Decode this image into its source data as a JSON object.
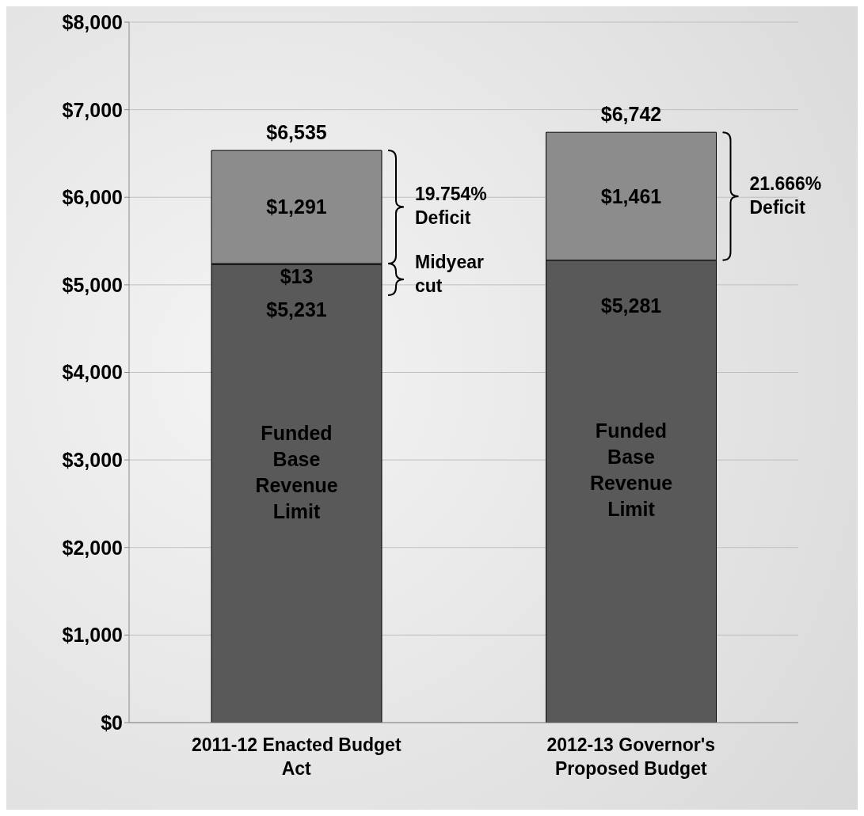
{
  "chart_data": {
    "type": "bar",
    "stacked": true,
    "categories": [
      "2011-12 Enacted Budget Act",
      "2012-13 Governor's Proposed Budget"
    ],
    "series": [
      {
        "color": "#595959",
        "values": [
          5231,
          5281
        ],
        "value_labels": [
          "$5,231",
          "$5,281"
        ]
      },
      {
        "color": "#c0c0c0",
        "values": [
          13,
          null
        ],
        "value_labels": [
          "$13",
          null
        ]
      },
      {
        "color": "#8c8c8c",
        "values": [
          1291,
          1461
        ],
        "value_labels": [
          "$1,291",
          "$1,461"
        ]
      }
    ],
    "totals": [
      "$6,535",
      "$6,742"
    ],
    "ylim": [
      0,
      8000
    ],
    "yticks": [
      {
        "value": 0,
        "label": "$0"
      },
      {
        "value": 1000,
        "label": "$1,000"
      },
      {
        "value": 2000,
        "label": "$2,000"
      },
      {
        "value": 3000,
        "label": "$3,000"
      },
      {
        "value": 4000,
        "label": "$4,000"
      },
      {
        "value": 5000,
        "label": "$5,000"
      },
      {
        "value": 6000,
        "label": "$6,000"
      },
      {
        "value": 7000,
        "label": "$7,000"
      },
      {
        "value": 8000,
        "label": "$8,000"
      }
    ],
    "grid": "y",
    "legend": false,
    "annotations": [
      "Funded Base Revenue Limit",
      "Midyear cut",
      "19.754% Deficit",
      "Funded Base Revenue Limit",
      "21.666% Deficit"
    ]
  }
}
